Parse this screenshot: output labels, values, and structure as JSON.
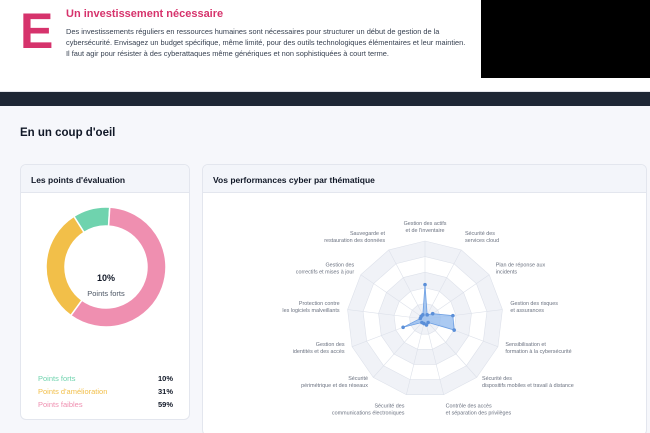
{
  "banner": {
    "grade": "E",
    "title": "Un investissement nécessaire",
    "text": "Des investissements réguliers en ressources humaines sont nécessaires pour structurer un début de gestion de la cybersécurité. Envisagez un budget spécifique, même limité, pour des outils technologiques élémentaires et leur maintien. Il faut agir pour résister à des cyberattaques même génériques et non sophistiquées à court terme."
  },
  "section_title": "En un coup d'oeil",
  "evaluation": {
    "title": "Les points d'évaluation",
    "center_value": "10%",
    "center_label": "Points forts",
    "legend": [
      {
        "label": "Points forts",
        "value": "10%",
        "color": "#6fd3ae"
      },
      {
        "label": "Points d'amélioration",
        "value": "31%",
        "color": "#f2bf49"
      },
      {
        "label": "Points faibles",
        "value": "59%",
        "color": "#ef8fb0"
      }
    ]
  },
  "performance": {
    "title": "Vos performances cyber par thématique"
  },
  "chart_data": [
    {
      "type": "pie",
      "title": "Les points d'évaluation",
      "categories": [
        "Points forts",
        "Points d'amélioration",
        "Points faibles"
      ],
      "values": [
        10,
        31,
        59
      ],
      "colors": [
        "#6fd3ae",
        "#f2bf49",
        "#ef8fb0"
      ]
    },
    {
      "type": "radar",
      "title": "Vos performances cyber par thématique",
      "axes": [
        [
          "Gestion des actifs",
          "et de l'inventaire"
        ],
        [
          "Sécurité des",
          "services cloud"
        ],
        [
          "Plan de réponse aux",
          "incidents"
        ],
        [
          "Gestion des risques",
          "et assurances"
        ],
        [
          "Sensibilisation et",
          "formation à la cybersécurité"
        ],
        [
          "Sécurité des",
          "dispositifs mobiles et travail à distance"
        ],
        [
          "Contrôle des accès",
          "et séparation des privilèges"
        ],
        [
          "Sécurité des",
          "communications électroniques"
        ],
        [
          "Sécurité",
          "périmétrique et des réseaux"
        ],
        [
          "Gestion des",
          "identités et des accès"
        ],
        [
          "Protection contre",
          "les logiciels malveillants"
        ],
        [
          "Gestion des",
          "correctifs et mises à jour"
        ],
        [
          "Sauvegarde et",
          "restauration des données"
        ]
      ],
      "values": [
        2.2,
        0.3,
        0.6,
        1.8,
        2.0,
        0.3,
        0.4,
        0.3,
        0.3,
        1.5,
        0.3,
        0.3,
        0.3
      ],
      "rmax": 5,
      "color": "#8fb8ee"
    }
  ]
}
